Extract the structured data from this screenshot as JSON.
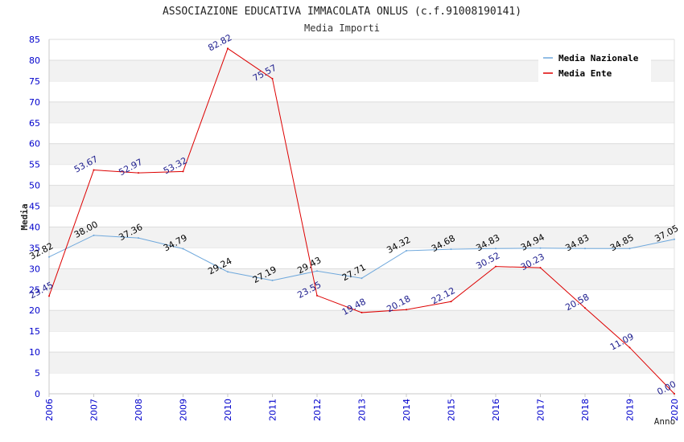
{
  "chart_data": {
    "type": "line",
    "title": "ASSOCIAZIONE EDUCATIVA IMMACOLATA ONLUS (c.f.91008190141)",
    "subtitle": "Media Importi",
    "xlabel": "Anno",
    "ylabel": "Media",
    "ylim": [
      0,
      85
    ],
    "ytick_step": 5,
    "grid": "horizontal",
    "legend_position": "top-right",
    "categories": [
      "2006",
      "2007",
      "2008",
      "2009",
      "2010",
      "2011",
      "2012",
      "2013",
      "2014",
      "2015",
      "2016",
      "2017",
      "2018",
      "2019",
      "2020"
    ],
    "series": [
      {
        "name": "Media Nazionale",
        "color": "#6fa8dc",
        "label_color": "#000000",
        "values": [
          32.82,
          38.0,
          37.36,
          34.79,
          29.24,
          27.19,
          29.43,
          27.71,
          34.32,
          34.68,
          34.83,
          34.94,
          34.83,
          34.85,
          37.05
        ],
        "labels": [
          "32.82",
          "38.00",
          "37.36",
          "34.79",
          "29.24",
          "27.19",
          "29.43",
          "27.71",
          "34.32",
          "34.68",
          "34.83",
          "34.94",
          "34.83",
          "34.85",
          "37.05"
        ]
      },
      {
        "name": "Media Ente",
        "color": "#dd0000",
        "label_color": "#1a1a8c",
        "values": [
          23.45,
          53.67,
          52.97,
          53.32,
          82.82,
          75.57,
          23.55,
          19.48,
          20.18,
          22.12,
          30.52,
          30.23,
          20.58,
          11.09,
          0.0
        ],
        "labels": [
          "23.45",
          "53.67",
          "52.97",
          "53.32",
          "82.82",
          "75.57",
          "23.55",
          "19.48",
          "20.18",
          "22.12",
          "30.52",
          "30.23",
          "20.58",
          "11.09",
          "0.00"
        ]
      }
    ]
  }
}
